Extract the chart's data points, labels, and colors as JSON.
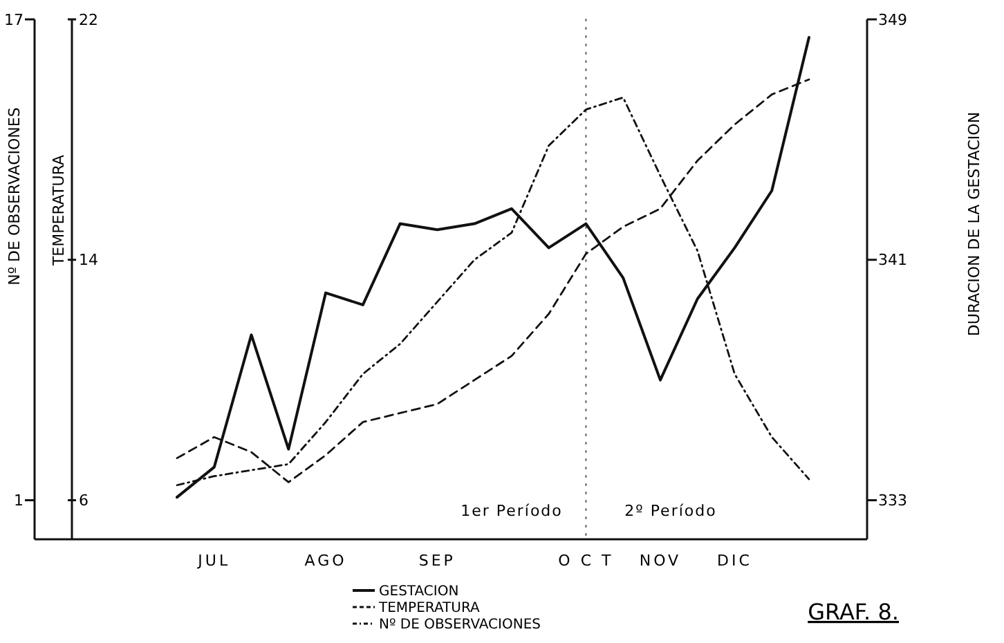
{
  "chart_data": {
    "type": "line",
    "y3label": "Nº DE OBSERVACIONES",
    "ylabel": "TEMPERATURA",
    "y2label": "DURACION DE LA GESTACION",
    "categories": [
      null,
      "JUL",
      null,
      null,
      "AGO",
      null,
      null,
      "SEP",
      null,
      null,
      null,
      "O C T",
      null,
      "NOV",
      null,
      "DIC",
      null,
      null
    ],
    "y3lim": [
      -0.3,
      17
    ],
    "y3ticks": [
      1,
      17
    ],
    "ylim": [
      4.7,
      22
    ],
    "yticks": [
      6,
      14,
      22
    ],
    "y2lim": [
      331.7,
      349
    ],
    "y2ticks": [
      333,
      341,
      349
    ],
    "series": [
      {
        "name": "GESTACION",
        "color": "#111111",
        "axis": "y2",
        "line_style": "solid",
        "values": [
          333.1,
          334.1,
          338.5,
          334.7,
          339.9,
          339.5,
          342.2,
          342,
          342.2,
          342.7,
          341.4,
          342.2,
          340.4,
          337,
          339.7,
          341.4,
          343.3,
          348.4
        ]
      },
      {
        "name": "TEMPERATURA",
        "color": "#111111",
        "axis": "y",
        "line_style": "dashed",
        "values": [
          7.4,
          8.1,
          7.6,
          6.6,
          7.5,
          8.6,
          8.9,
          9.2,
          10,
          10.8,
          12.2,
          14.2,
          15.1,
          15.7,
          17.3,
          18.5,
          19.5,
          20
        ]
      },
      {
        "name": "Nº DE OBSERVACIONES",
        "color": "#111111",
        "axis": "y3",
        "line_style": "dotted",
        "values": [
          1.5,
          1.8,
          2,
          2.2,
          3.6,
          5.2,
          6.2,
          7.6,
          9,
          9.9,
          12.8,
          14,
          14.4,
          11.8,
          9.3,
          5.2,
          3.1,
          1.7
        ]
      }
    ],
    "ref_lines": [
      {
        "axis": "x",
        "value": "O C T",
        "line_style": "dotted"
      }
    ],
    "annotations": [
      "1er Período",
      "2º Período",
      "GRAF. 8."
    ],
    "legend": "bottom"
  }
}
